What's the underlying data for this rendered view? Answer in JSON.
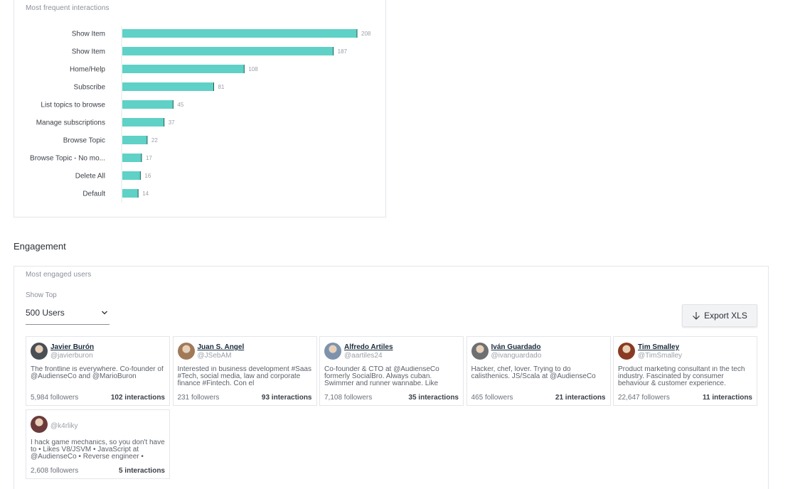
{
  "chart_card": {
    "title": "Most frequent interactions"
  },
  "chart_data": {
    "type": "bar",
    "orientation": "horizontal",
    "title": "Most frequent interactions",
    "categories": [
      "Show Item",
      "Show Item",
      "Home/Help",
      "Subscribe",
      "List topics to browse",
      "Manage subscriptions",
      "Browse Topic",
      "Browse Topic - No mo...",
      "Delete All",
      "Default"
    ],
    "values": [
      208,
      187,
      108,
      81,
      45,
      37,
      22,
      17,
      16,
      14
    ],
    "bar_color": "#5fd1c6",
    "grid": false
  },
  "engagement": {
    "heading": "Engagement",
    "card_title": "Most engaged users",
    "show_top_label": "Show Top",
    "show_top_value": "500 Users",
    "export_label": "Export XLS",
    "users": [
      {
        "name": "Javier Burón",
        "handle": "@javierburon",
        "bio": "The frontline is everywhere. Co-founder of @AudienseCo and @MarioBuron",
        "followers": "5,984 followers",
        "interactions": "102 interactions",
        "avatar_color": "#4a4f55"
      },
      {
        "name": "Juan S. Angel",
        "handle": "@JSebAM",
        "bio": "Interested in business development #Saas #Tech, social media, law and corporate finance #Fintech. Con el",
        "followers": "231 followers",
        "interactions": "93 interactions",
        "avatar_color": "#a07a58"
      },
      {
        "name": "Alfredo Artiles",
        "handle": "@aartiles24",
        "bio": "Co-founder & CTO at @AudienseCo formerly SocialBro. Always cuban. Swimmer and runner wannabe. Like",
        "followers": "7,108 followers",
        "interactions": "35 interactions",
        "avatar_color": "#7d93ad"
      },
      {
        "name": "Iván Guardado",
        "handle": "@ivanguardado",
        "bio": "Hacker, chef, lover. Trying to do calisthenics. JS/Scala at @AudienseCo",
        "followers": "465 followers",
        "interactions": "21 interactions",
        "avatar_color": "#6d6f72"
      },
      {
        "name": "Tim Smalley",
        "handle": "@TimSmalley",
        "bio": "Product marketing consultant in the tech industry. Fascinated by consumer behaviour & customer experience.",
        "followers": "22,647 followers",
        "interactions": "11 interactions",
        "avatar_color": "#8a3a22"
      },
      {
        "name": "",
        "handle": "@k4rliky",
        "bio": "I hack game mechanics, so you don't have to • Likes V8/JSVM • JavaScript at @AudienseCo • Reverse engineer •",
        "followers": "2,608 followers",
        "interactions": "5 interactions",
        "avatar_color": "#6b3a3a"
      }
    ]
  }
}
